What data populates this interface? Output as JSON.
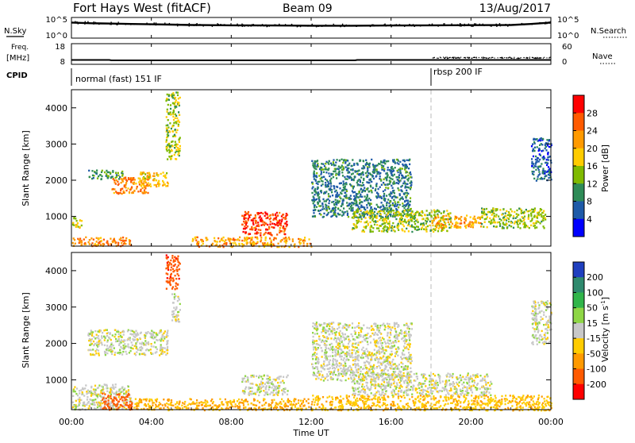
{
  "header": {
    "title": "Fort Hays West (fitACF)",
    "beam": "Beam 09",
    "date": "13/Aug/2017"
  },
  "top_panels": {
    "nsky_label": "N.Sky",
    "nsearch_label": "N.Search",
    "nsky_ticks": [
      "10^5",
      "10^0"
    ],
    "nsearch_ticks": [
      "10^5",
      "10^0"
    ],
    "freq_label_line1": "Freq.",
    "freq_label_line2": "[MHz]",
    "freq_ticks": [
      "18",
      "8"
    ],
    "nave_label": "Nave",
    "nave_ticks": [
      "60",
      "0"
    ],
    "cpid_label": "CPID",
    "cpid_modes": [
      {
        "label": "normal (fast) 151 IF",
        "start_hour": 0
      },
      {
        "label": "rbsp 200 IF",
        "start_hour": 18.0
      }
    ]
  },
  "x_axis": {
    "label": "Time UT",
    "tick_labels": [
      "00:00",
      "04:00",
      "08:00",
      "12:00",
      "16:00",
      "20:00",
      "00:00"
    ],
    "range_hours": [
      0,
      24
    ]
  },
  "power_colorbar": {
    "label": "Power [dB]",
    "ticks": [
      "28",
      "24",
      "20",
      "16",
      "12",
      "8",
      "4"
    ],
    "colors": [
      "#ff0000",
      "#ff5a00",
      "#ff9a00",
      "#ffcc00",
      "#7fba00",
      "#2e8b57",
      "#1e5aa8",
      "#0000ff"
    ]
  },
  "velocity_colorbar": {
    "label": "Velocity [m s",
    "label_exp": "-1",
    "label_end": "]",
    "ticks": [
      "200",
      "100",
      "50",
      "15",
      "-15",
      "-50",
      "-100",
      "-200"
    ],
    "colors": [
      "#1f3fbf",
      "#2f8a6e",
      "#31b54a",
      "#8ed645",
      "#c8c8c8",
      "#ffcc00",
      "#ff9a00",
      "#ff5a00",
      "#ff0000"
    ]
  },
  "chart_data": [
    {
      "type": "line",
      "panel": "N.Sky / N.Search",
      "x_unit": "hours UT",
      "x": [
        0,
        1,
        2,
        3,
        4,
        5,
        6,
        8,
        10,
        12,
        14,
        16,
        18,
        20,
        22,
        23,
        24
      ],
      "series": [
        {
          "values": [
            0.8,
            0.76,
            0.74,
            0.72,
            0.7,
            0.68,
            0.66,
            0.64,
            0.63,
            0.62,
            0.62,
            0.63,
            0.64,
            0.65,
            0.66,
            0.72,
            0.8
          ]
        }
      ],
      "ylim": [
        0,
        1
      ]
    },
    {
      "type": "line",
      "panel": "Freq. / Nave",
      "x_unit": "hours UT",
      "x": [
        0,
        1.9,
        2.0,
        14.2,
        14.3,
        24
      ],
      "series": [
        {
          "values": [
            10.2,
            10.2,
            10.0,
            10.0,
            10.2,
            10.2
          ]
        }
      ],
      "ylim": [
        8,
        18
      ]
    },
    {
      "type": "heatmap",
      "panel": "Power",
      "x_unit": "hours UT",
      "y_unit": "km",
      "ylim": [
        180,
        4500
      ],
      "yticks": [
        1000,
        2000,
        3000,
        4000
      ],
      "ylabel": "Slant Range [km]",
      "clim": [
        0,
        30
      ],
      "scatter_regions": [
        {
          "t0": 0.0,
          "t1": 0.5,
          "r0": 700,
          "r1": 1000,
          "value": 16
        },
        {
          "t0": 0.0,
          "t1": 3.0,
          "r0": 200,
          "r1": 450,
          "value": 22
        },
        {
          "t0": 0.8,
          "t1": 2.6,
          "r0": 2050,
          "r1": 2300,
          "value": 10
        },
        {
          "t0": 2.0,
          "t1": 3.8,
          "r0": 1650,
          "r1": 2100,
          "value": 22
        },
        {
          "t0": 3.3,
          "t1": 4.8,
          "r0": 1850,
          "r1": 2250,
          "value": 18
        },
        {
          "t0": 4.7,
          "t1": 5.4,
          "r0": 2600,
          "r1": 4450,
          "value": 14
        },
        {
          "t0": 8.5,
          "t1": 10.8,
          "r0": 500,
          "r1": 1150,
          "value": 26
        },
        {
          "t0": 6.0,
          "t1": 12.0,
          "r0": 180,
          "r1": 450,
          "value": 20
        },
        {
          "t0": 12.0,
          "t1": 17.0,
          "r0": 1000,
          "r1": 2600,
          "value": 8
        },
        {
          "t0": 14.0,
          "t1": 19.0,
          "r0": 600,
          "r1": 1200,
          "value": 14
        },
        {
          "t0": 18.0,
          "t1": 20.5,
          "r0": 700,
          "r1": 1050,
          "value": 20
        },
        {
          "t0": 20.5,
          "t1": 23.7,
          "r0": 700,
          "r1": 1250,
          "value": 14
        },
        {
          "t0": 23.0,
          "t1": 24.0,
          "r0": 2000,
          "r1": 3200,
          "value": 6
        }
      ]
    },
    {
      "type": "heatmap",
      "panel": "Velocity",
      "x_unit": "hours UT",
      "y_unit": "km",
      "ylim": [
        180,
        4500
      ],
      "yticks": [
        1000,
        2000,
        3000,
        4000
      ],
      "ylabel": "Slant Range [km]",
      "clim": [
        -200,
        200
      ],
      "scatter_regions": [
        {
          "t0": 0.0,
          "t1": 3.0,
          "r0": 200,
          "r1": 900,
          "value": 0
        },
        {
          "t0": 1.5,
          "t1": 3.0,
          "r0": 200,
          "r1": 650,
          "value": -150
        },
        {
          "t0": 0.8,
          "t1": 4.8,
          "r0": 1700,
          "r1": 2400,
          "value": 0
        },
        {
          "t0": 4.7,
          "t1": 5.4,
          "r0": 3500,
          "r1": 4450,
          "value": -180
        },
        {
          "t0": 5.0,
          "t1": 5.4,
          "r0": 2600,
          "r1": 3400,
          "value": 0
        },
        {
          "t0": 3.0,
          "t1": 12.0,
          "r0": 180,
          "r1": 500,
          "value": -50
        },
        {
          "t0": 8.5,
          "t1": 10.8,
          "r0": 600,
          "r1": 1150,
          "value": 0
        },
        {
          "t0": 12.0,
          "t1": 17.0,
          "r0": 1000,
          "r1": 2600,
          "value": 0
        },
        {
          "t0": 12.0,
          "t1": 24.0,
          "r0": 180,
          "r1": 600,
          "value": -40
        },
        {
          "t0": 14.0,
          "t1": 21.0,
          "r0": 600,
          "r1": 1200,
          "value": 0
        },
        {
          "t0": 23.0,
          "t1": 24.0,
          "r0": 2000,
          "r1": 3200,
          "value": 0
        }
      ]
    }
  ]
}
